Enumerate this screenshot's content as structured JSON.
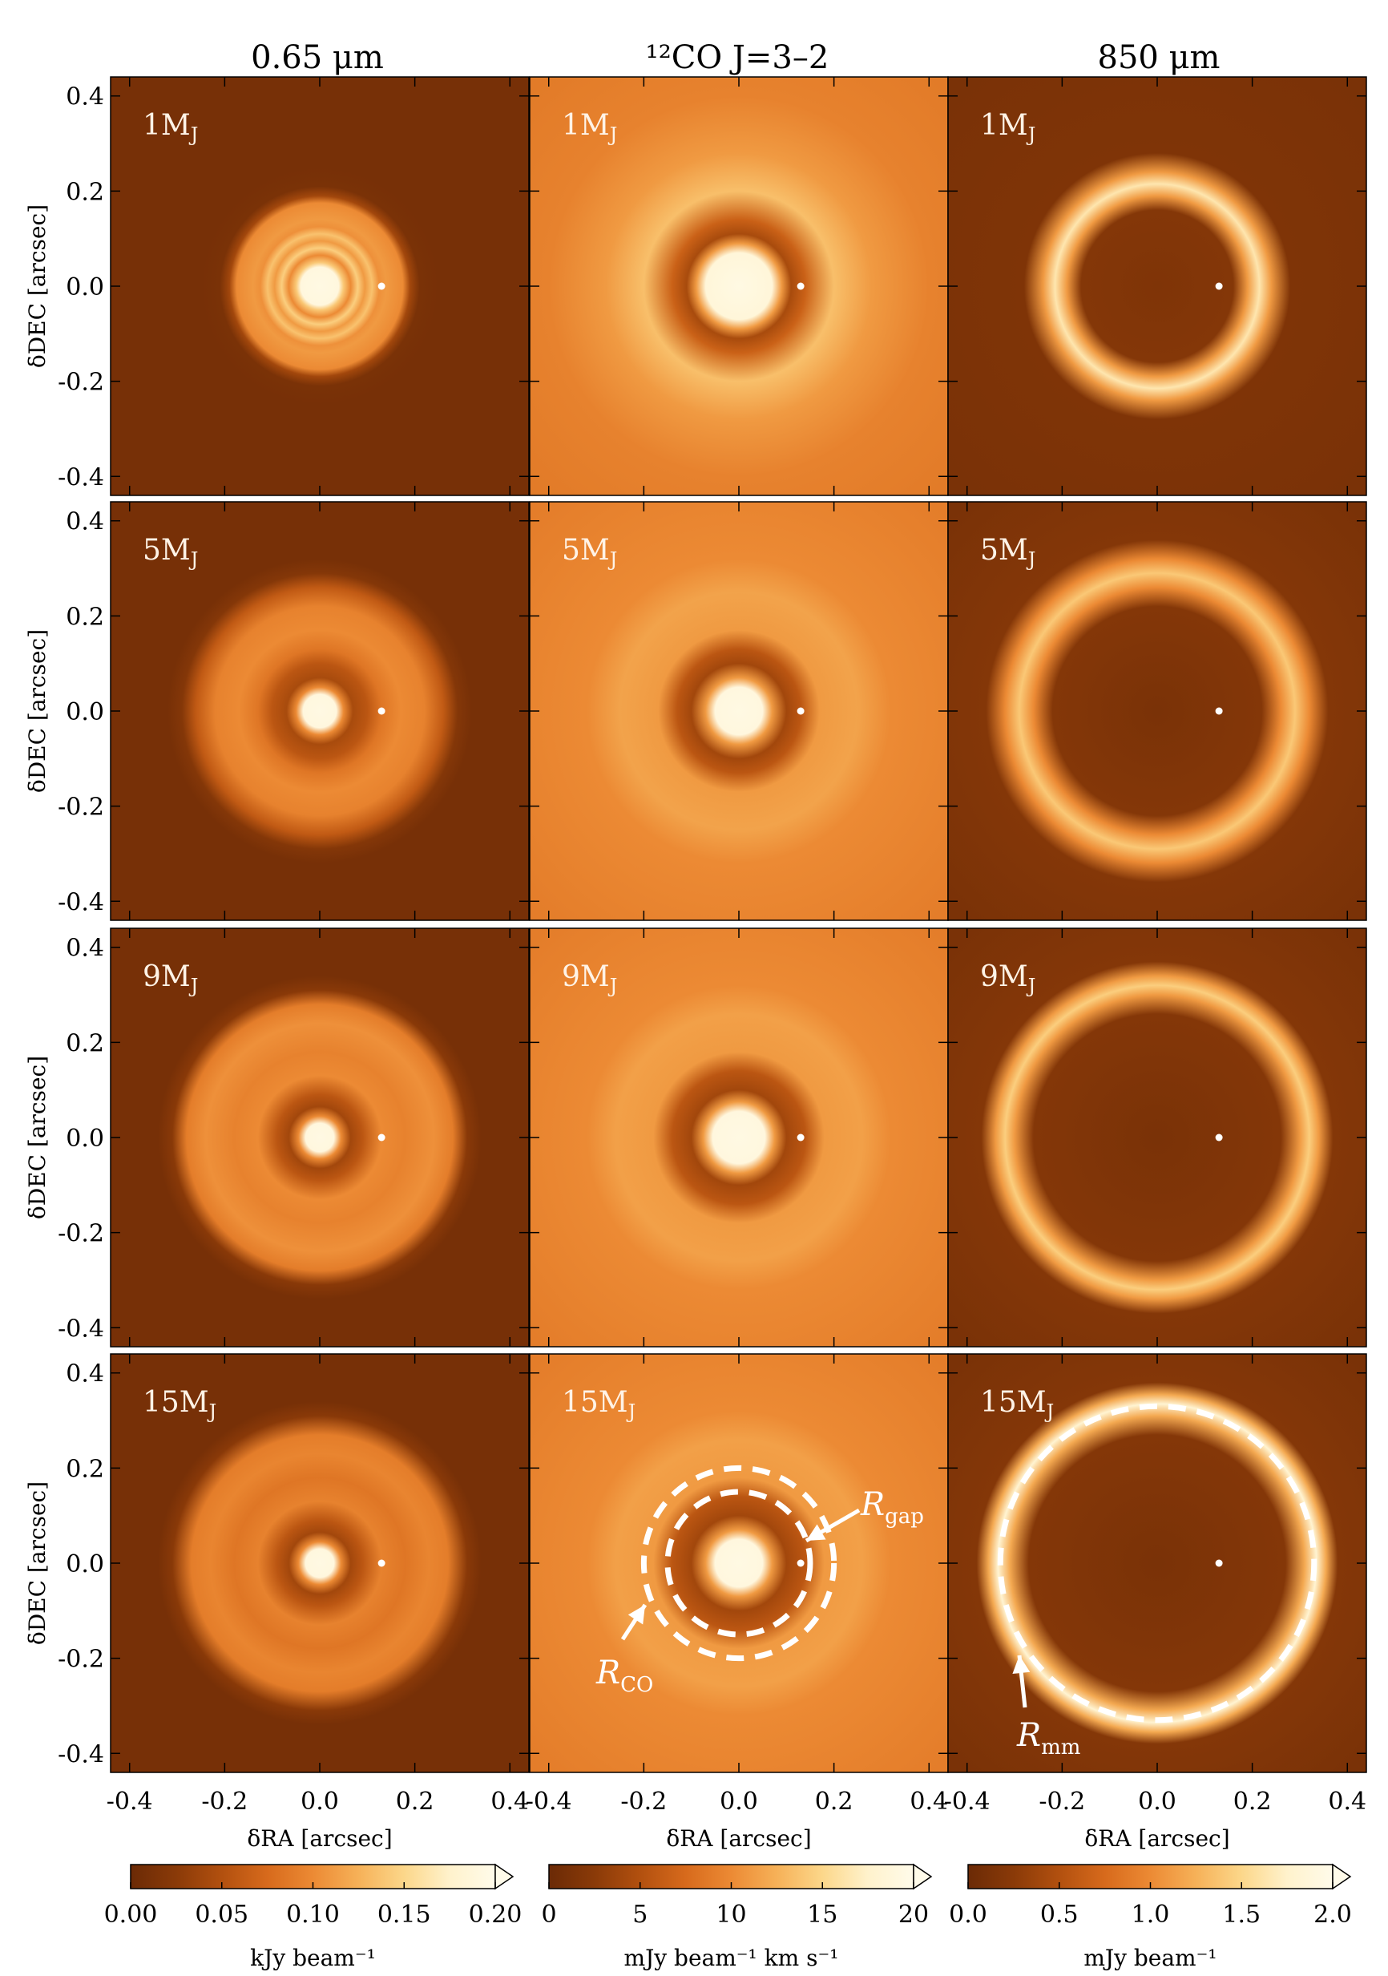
{
  "figure": {
    "column_titles": [
      "0.65 μm",
      "¹²CO J=3–2",
      "850 μm"
    ],
    "row_labels": [
      "1M_J",
      "5M_J",
      "9M_J",
      "15M_J"
    ],
    "x_axis_label": "δRA [arcsec]",
    "y_axis_label": "δDEC [arcsec]",
    "x_ticks": [
      "-0.4",
      "-0.2",
      "0.0",
      "0.2",
      "0.4"
    ],
    "y_ticks": [
      "0.4",
      "0.2",
      "0.0",
      "-0.2",
      "-0.4"
    ],
    "colorbars": [
      {
        "unit": "kJy beam⁻¹",
        "ticks": [
          "0.00",
          "0.05",
          "0.10",
          "0.15",
          "0.20"
        ],
        "min": 0,
        "max": 0.2
      },
      {
        "unit": "mJy beam⁻¹ km s⁻¹",
        "ticks": [
          "0",
          "5",
          "10",
          "15",
          "20"
        ],
        "min": 0,
        "max": 20
      },
      {
        "unit": "mJy beam⁻¹",
        "ticks": [
          "0.0",
          "0.5",
          "1.0",
          "1.5",
          "2.0"
        ],
        "min": 0,
        "max": 2.0
      }
    ],
    "annotations": {
      "r_gap": "R_gap",
      "r_co": "R_CO",
      "r_mm": "R_mm"
    },
    "colormap": [
      "#6b2a06",
      "#8a3a08",
      "#b2500f",
      "#d76a1c",
      "#ec8a34",
      "#f6b158",
      "#fcd78a",
      "#fff2cc",
      "#fffbea"
    ]
  },
  "chart_data": {
    "type": "heatmap",
    "grid_rows": 4,
    "grid_cols": 3,
    "xlim": [
      -0.44,
      0.44
    ],
    "ylim": [
      -0.44,
      0.44
    ],
    "planet_position_arcsec": [
      0.13,
      0.0
    ],
    "annotation_radii_arcsec": {
      "R_CO": 0.2,
      "R_gap": 0.15,
      "R_mm": 0.33
    },
    "panels": [
      {
        "row": 0,
        "col": 0,
        "background": 0.05,
        "profile": [
          [
            0.0,
            0.97
          ],
          [
            0.04,
            0.95
          ],
          [
            0.05,
            0.7
          ],
          [
            0.065,
            0.5
          ],
          [
            0.08,
            0.72
          ],
          [
            0.095,
            0.55
          ],
          [
            0.11,
            0.68
          ],
          [
            0.125,
            0.52
          ],
          [
            0.14,
            0.55
          ],
          [
            0.175,
            0.5
          ],
          [
            0.19,
            0.2
          ],
          [
            0.21,
            0.06
          ],
          [
            0.25,
            0.05
          ]
        ]
      },
      {
        "row": 0,
        "col": 1,
        "background": 0.44,
        "profile": [
          [
            0.0,
            0.97
          ],
          [
            0.07,
            0.93
          ],
          [
            0.09,
            0.55
          ],
          [
            0.11,
            0.22
          ],
          [
            0.14,
            0.33
          ],
          [
            0.2,
            0.67
          ],
          [
            0.28,
            0.55
          ],
          [
            0.4,
            0.47
          ],
          [
            0.6,
            0.44
          ]
        ]
      },
      {
        "row": 0,
        "col": 2,
        "background": 0.06,
        "profile": [
          [
            0.0,
            0.08
          ],
          [
            0.16,
            0.1
          ],
          [
            0.19,
            0.55
          ],
          [
            0.215,
            0.82
          ],
          [
            0.24,
            0.55
          ],
          [
            0.28,
            0.08
          ],
          [
            0.6,
            0.06
          ]
        ]
      },
      {
        "row": 1,
        "col": 0,
        "background": 0.05,
        "profile": [
          [
            0.0,
            0.97
          ],
          [
            0.035,
            0.95
          ],
          [
            0.05,
            0.5
          ],
          [
            0.07,
            0.22
          ],
          [
            0.1,
            0.28
          ],
          [
            0.13,
            0.42
          ],
          [
            0.17,
            0.5
          ],
          [
            0.22,
            0.47
          ],
          [
            0.26,
            0.3
          ],
          [
            0.29,
            0.1
          ],
          [
            0.32,
            0.05
          ]
        ]
      },
      {
        "row": 1,
        "col": 1,
        "background": 0.45,
        "profile": [
          [
            0.0,
            0.97
          ],
          [
            0.05,
            0.95
          ],
          [
            0.07,
            0.55
          ],
          [
            0.1,
            0.2
          ],
          [
            0.13,
            0.28
          ],
          [
            0.17,
            0.55
          ],
          [
            0.25,
            0.58
          ],
          [
            0.32,
            0.5
          ],
          [
            0.6,
            0.45
          ]
        ]
      },
      {
        "row": 1,
        "col": 2,
        "background": 0.06,
        "profile": [
          [
            0.0,
            0.06
          ],
          [
            0.22,
            0.1
          ],
          [
            0.26,
            0.5
          ],
          [
            0.29,
            0.7
          ],
          [
            0.32,
            0.5
          ],
          [
            0.36,
            0.1
          ],
          [
            0.6,
            0.06
          ]
        ]
      },
      {
        "row": 2,
        "col": 0,
        "background": 0.05,
        "profile": [
          [
            0.0,
            0.97
          ],
          [
            0.03,
            0.95
          ],
          [
            0.045,
            0.5
          ],
          [
            0.065,
            0.2
          ],
          [
            0.09,
            0.28
          ],
          [
            0.13,
            0.5
          ],
          [
            0.18,
            0.47
          ],
          [
            0.24,
            0.52
          ],
          [
            0.28,
            0.45
          ],
          [
            0.31,
            0.12
          ],
          [
            0.34,
            0.05
          ]
        ]
      },
      {
        "row": 2,
        "col": 1,
        "background": 0.45,
        "profile": [
          [
            0.0,
            0.97
          ],
          [
            0.055,
            0.95
          ],
          [
            0.075,
            0.55
          ],
          [
            0.1,
            0.2
          ],
          [
            0.14,
            0.28
          ],
          [
            0.18,
            0.55
          ],
          [
            0.26,
            0.57
          ],
          [
            0.32,
            0.5
          ],
          [
            0.6,
            0.45
          ]
        ]
      },
      {
        "row": 2,
        "col": 2,
        "background": 0.06,
        "profile": [
          [
            0.0,
            0.06
          ],
          [
            0.26,
            0.1
          ],
          [
            0.3,
            0.55
          ],
          [
            0.32,
            0.72
          ],
          [
            0.34,
            0.55
          ],
          [
            0.37,
            0.1
          ],
          [
            0.6,
            0.06
          ]
        ]
      },
      {
        "row": 3,
        "col": 0,
        "background": 0.05,
        "profile": [
          [
            0.0,
            0.97
          ],
          [
            0.03,
            0.95
          ],
          [
            0.045,
            0.5
          ],
          [
            0.065,
            0.2
          ],
          [
            0.09,
            0.28
          ],
          [
            0.13,
            0.47
          ],
          [
            0.18,
            0.42
          ],
          [
            0.23,
            0.48
          ],
          [
            0.27,
            0.45
          ],
          [
            0.31,
            0.12
          ],
          [
            0.34,
            0.05
          ]
        ]
      },
      {
        "row": 3,
        "col": 1,
        "background": 0.45,
        "profile": [
          [
            0.0,
            0.97
          ],
          [
            0.05,
            0.95
          ],
          [
            0.07,
            0.55
          ],
          [
            0.1,
            0.2
          ],
          [
            0.14,
            0.28
          ],
          [
            0.18,
            0.55
          ],
          [
            0.26,
            0.57
          ],
          [
            0.32,
            0.5
          ],
          [
            0.6,
            0.45
          ]
        ]
      },
      {
        "row": 3,
        "col": 2,
        "background": 0.06,
        "profile": [
          [
            0.0,
            0.06
          ],
          [
            0.27,
            0.1
          ],
          [
            0.31,
            0.6
          ],
          [
            0.335,
            0.9
          ],
          [
            0.355,
            0.6
          ],
          [
            0.38,
            0.1
          ],
          [
            0.6,
            0.06
          ]
        ]
      }
    ]
  }
}
